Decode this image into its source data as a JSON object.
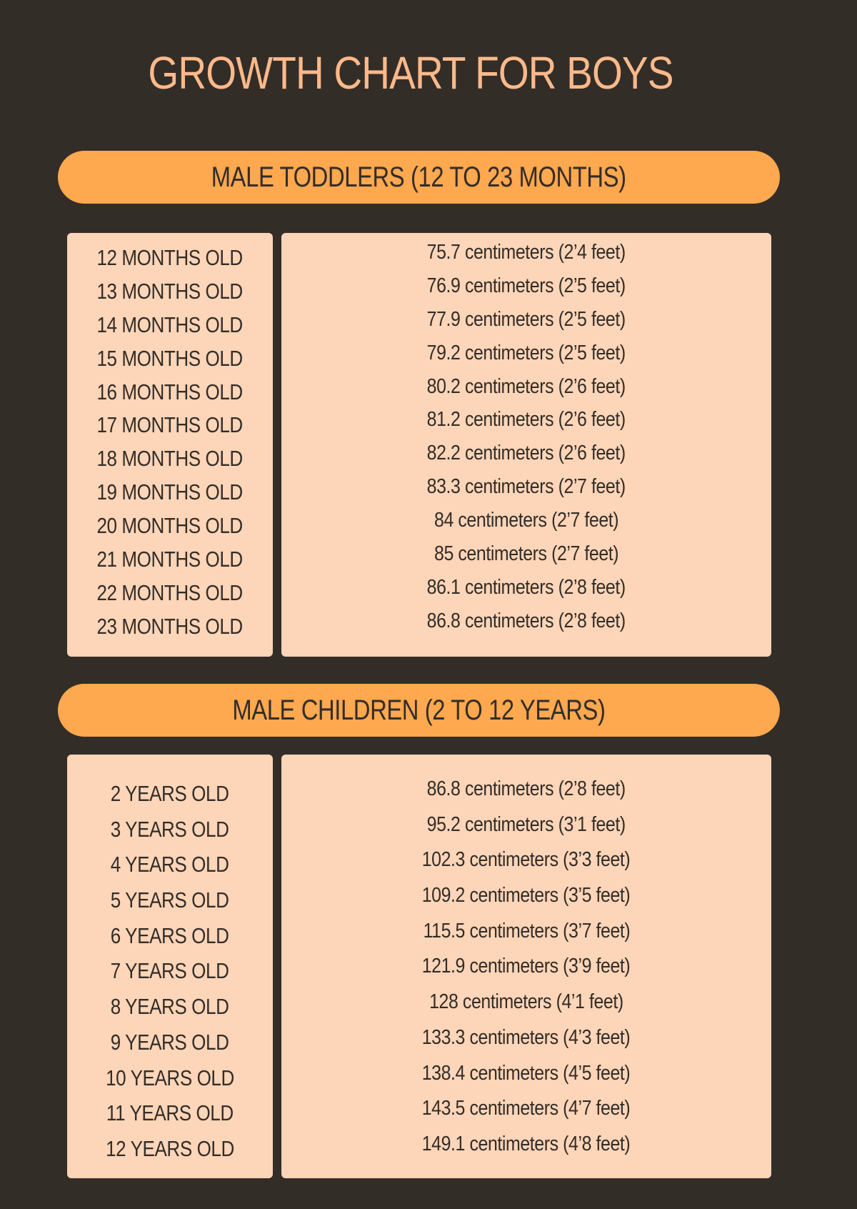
{
  "title": "GROWTH CHART FOR BOYS",
  "colors": {
    "background": "#332d28",
    "title": "#fdb98a",
    "banner": "#fea84f",
    "box": "#fdd5b8",
    "text": "#332d28"
  },
  "sections": [
    {
      "heading": "MALE TODDLERS (12 TO 23 MONTHS)",
      "rows": [
        {
          "age": "12 MONTHS OLD",
          "height": "75.7 centimeters (2’4 feet)"
        },
        {
          "age": "13 MONTHS OLD",
          "height": "76.9 centimeters (2’5 feet)"
        },
        {
          "age": "14 MONTHS OLD",
          "height": "77.9 centimeters (2’5 feet)"
        },
        {
          "age": "15 MONTHS OLD",
          "height": "79.2 centimeters (2’5 feet)"
        },
        {
          "age": "16 MONTHS OLD",
          "height": "80.2 centimeters (2’6 feet)"
        },
        {
          "age": "17 MONTHS OLD",
          "height": "81.2 centimeters (2’6 feet)"
        },
        {
          "age": "18 MONTHS OLD",
          "height": "82.2 centimeters (2’6 feet)"
        },
        {
          "age": "19 MONTHS OLD",
          "height": "83.3 centimeters (2’7 feet)"
        },
        {
          "age": "20 MONTHS OLD",
          "height": "84 centimeters (2’7 feet)"
        },
        {
          "age": "21 MONTHS OLD",
          "height": "85 centimeters  (2’7 feet)"
        },
        {
          "age": "22 MONTHS OLD",
          "height": "86.1 centimeters (2’8 feet)"
        },
        {
          "age": "23 MONTHS OLD",
          "height": "86.8 centimeters (2’8 feet)"
        }
      ]
    },
    {
      "heading": "MALE CHILDREN (2 TO 12 YEARS)",
      "rows": [
        {
          "age": "2 YEARS OLD",
          "height": "86.8 centimeters (2’8 feet)"
        },
        {
          "age": "3 YEARS OLD",
          "height": "95.2 centimeters (3’1 feet)"
        },
        {
          "age": "4 YEARS OLD",
          "height": "102.3 centimeters (3’3 feet)"
        },
        {
          "age": "5 YEARS OLD",
          "height": "109.2 centimeters (3’5 feet)"
        },
        {
          "age": "6 YEARS OLD",
          "height": "115.5 centimeters (3’7 feet)"
        },
        {
          "age": "7 YEARS OLD",
          "height": "121.9 centimeters (3’9 feet)"
        },
        {
          "age": "8 YEARS OLD",
          "height": "128 centimeters (4’1 feet)"
        },
        {
          "age": "9 YEARS OLD",
          "height": "133.3 centimeters (4’3 feet)"
        },
        {
          "age": "10 YEARS OLD",
          "height": "138.4 centimeters (4’5 feet)"
        },
        {
          "age": "11 YEARS OLD",
          "height": "143.5 centimeters (4’7 feet)"
        },
        {
          "age": "12 YEARS OLD",
          "height": "149.1 centimeters (4’8 feet)"
        }
      ]
    }
  ]
}
